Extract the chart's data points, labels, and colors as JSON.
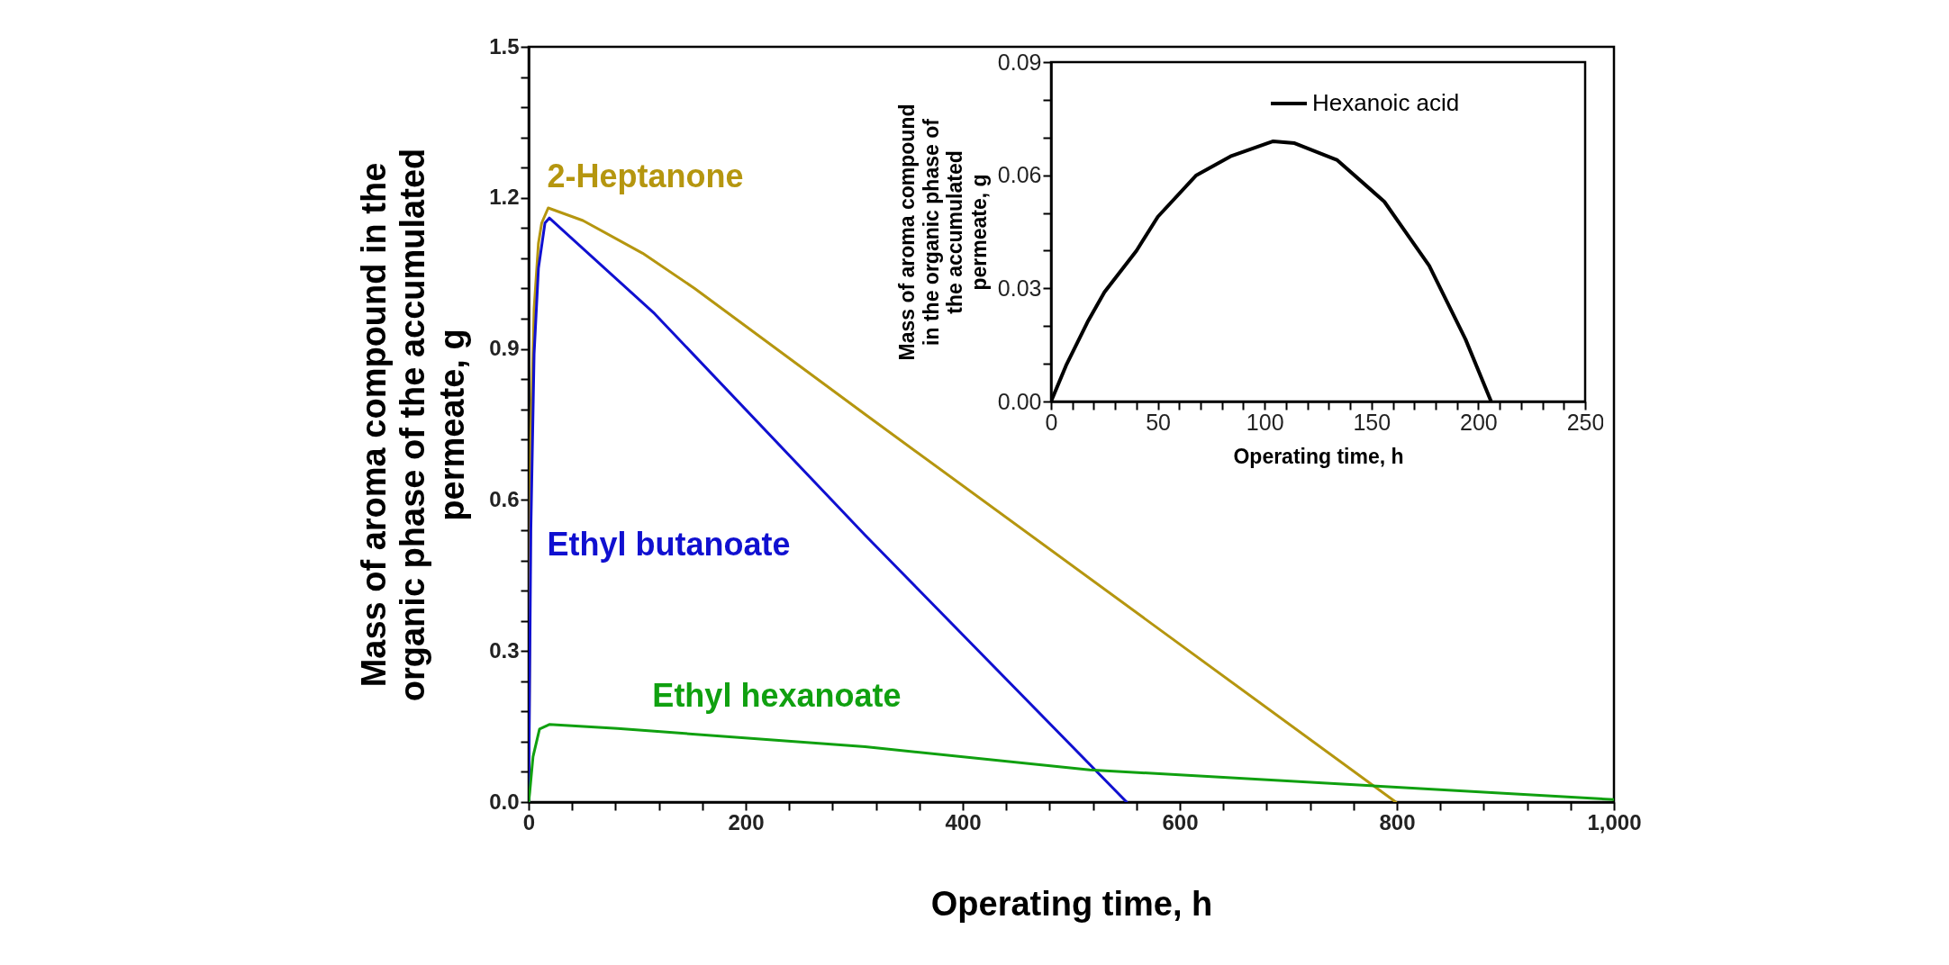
{
  "chart_data": [
    {
      "type": "line",
      "xlabel": "Operating time, h",
      "ylabel": "Mass of aroma compound in the\norganic phase of the accumulated\npermeate, g",
      "xlim": [
        0,
        1000
      ],
      "ylim": [
        0,
        1.5
      ],
      "xticks": [
        0,
        {
          "value": 40,
          "label": null
        },
        {
          "value": 80,
          "label": null
        },
        {
          "value": 120,
          "label": null
        },
        {
          "value": 160,
          "label": null
        },
        200,
        {
          "value": 240,
          "label": null
        },
        {
          "value": 280,
          "label": null
        },
        {
          "value": 320,
          "label": null
        },
        {
          "value": 360,
          "label": null
        },
        400,
        {
          "value": 440,
          "label": null
        },
        {
          "value": 480,
          "label": null
        },
        {
          "value": 520,
          "label": null
        },
        {
          "value": 560,
          "label": null
        },
        600,
        {
          "value": 640,
          "label": null
        },
        {
          "value": 680,
          "label": null
        },
        {
          "value": 720,
          "label": null
        },
        {
          "value": 760,
          "label": null
        },
        800,
        {
          "value": 840,
          "label": null
        },
        {
          "value": 880,
          "label": null
        },
        {
          "value": 920,
          "label": null
        },
        {
          "value": 960,
          "label": null
        },
        {
          "value": 1000,
          "label": "1,000"
        }
      ],
      "yticks": [
        {
          "value": 0,
          "label": "0.0"
        },
        {
          "value": 0.06,
          "label": null
        },
        {
          "value": 0.12,
          "label": null
        },
        {
          "value": 0.18,
          "label": null
        },
        {
          "value": 0.24,
          "label": null
        },
        0.3,
        {
          "value": 0.36,
          "label": null
        },
        {
          "value": 0.42,
          "label": null
        },
        {
          "value": 0.48,
          "label": null
        },
        {
          "value": 0.54,
          "label": null
        },
        0.6,
        {
          "value": 0.66,
          "label": null
        },
        {
          "value": 0.72,
          "label": null
        },
        {
          "value": 0.78,
          "label": null
        },
        {
          "value": 0.84,
          "label": null
        },
        0.9,
        {
          "value": 0.96,
          "label": null
        },
        {
          "value": 1.02,
          "label": null
        },
        {
          "value": 1.08,
          "label": null
        },
        {
          "value": 1.14,
          "label": null
        },
        1.2,
        {
          "value": 1.26,
          "label": null
        },
        {
          "value": 1.32,
          "label": null
        },
        {
          "value": 1.38,
          "label": null
        },
        {
          "value": 1.44,
          "label": null
        },
        1.5
      ],
      "series": [
        {
          "name": "2-Heptanone",
          "color": "#b5960f",
          "x": [
            0,
            2,
            5,
            9,
            12,
            18,
            50,
            105,
            153,
            310,
            799
          ],
          "values": [
            0,
            0.72,
            0.98,
            1.11,
            1.15,
            1.18,
            1.155,
            1.09,
            1.02,
            0.77,
            0
          ]
        },
        {
          "name": "Ethyl butanoate",
          "color": "#1010d0",
          "x": [
            0,
            2,
            5,
            9,
            15,
            19,
            116,
            310,
            551
          ],
          "values": [
            0,
            0.54,
            0.89,
            1.06,
            1.15,
            1.16,
            0.97,
            0.53,
            0
          ]
        },
        {
          "name": "Ethyl hexanoate",
          "color": "#10a010",
          "x": [
            0,
            1,
            4,
            10,
            19,
            82,
            310,
            517,
            1000
          ],
          "values": [
            0,
            0.02,
            0.09,
            0.145,
            0.154,
            0.146,
            0.11,
            0.064,
            0.005
          ]
        }
      ]
    },
    {
      "type": "line",
      "xlabel": "Operating time, h",
      "ylabel": "Mass of aroma compound\nin the organic phase of\nthe accumulated\npermeate, g",
      "xlim": [
        0,
        250
      ],
      "ylim": [
        0,
        0.09
      ],
      "legend": "top right",
      "xticks": [
        0,
        {
          "value": 10,
          "label": null
        },
        {
          "value": 20,
          "label": null
        },
        {
          "value": 30,
          "label": null
        },
        {
          "value": 40,
          "label": null
        },
        50,
        {
          "value": 60,
          "label": null
        },
        {
          "value": 70,
          "label": null
        },
        {
          "value": 80,
          "label": null
        },
        {
          "value": 90,
          "label": null
        },
        100,
        {
          "value": 110,
          "label": null
        },
        {
          "value": 120,
          "label": null
        },
        {
          "value": 130,
          "label": null
        },
        {
          "value": 140,
          "label": null
        },
        150,
        {
          "value": 160,
          "label": null
        },
        {
          "value": 170,
          "label": null
        },
        {
          "value": 180,
          "label": null
        },
        {
          "value": 190,
          "label": null
        },
        200,
        {
          "value": 210,
          "label": null
        },
        {
          "value": 220,
          "label": null
        },
        {
          "value": 230,
          "label": null
        },
        {
          "value": 240,
          "label": null
        },
        250
      ],
      "yticks": [
        {
          "value": 0,
          "label": "0.00"
        },
        {
          "value": 0.01,
          "label": null
        },
        {
          "value": 0.02,
          "label": null
        },
        {
          "value": 0.03,
          "label": "0.03"
        },
        {
          "value": 0.04,
          "label": null
        },
        {
          "value": 0.05,
          "label": null
        },
        {
          "value": 0.06,
          "label": "0.06"
        },
        {
          "value": 0.07,
          "label": null
        },
        {
          "value": 0.08,
          "label": null
        },
        {
          "value": 0.09,
          "label": "0.09"
        }
      ],
      "series": [
        {
          "name": "Hexanoic acid",
          "color": "#000000",
          "x": [
            0,
            7,
            17,
            25,
            40,
            50,
            68,
            84,
            104,
            114,
            134,
            156,
            177,
            194,
            206
          ],
          "values": [
            0,
            0.0095,
            0.021,
            0.029,
            0.04,
            0.049,
            0.06,
            0.065,
            0.069,
            0.0685,
            0.064,
            0.053,
            0.036,
            0.0165,
            0
          ]
        }
      ]
    }
  ]
}
